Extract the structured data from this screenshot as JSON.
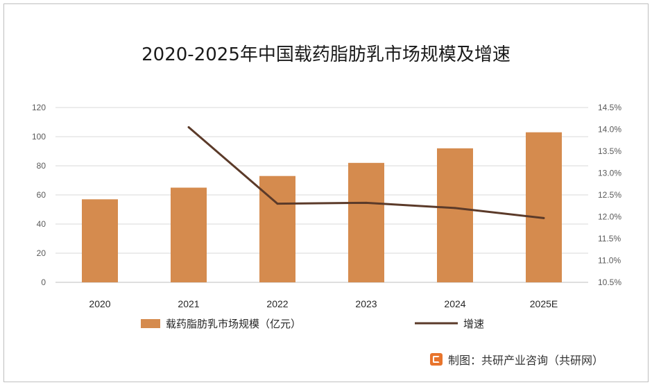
{
  "chart_data": {
    "type": "bar+line",
    "title": "2020-2025年中国载药脂肪乳市场规模及增速",
    "categories": [
      "2020",
      "2021",
      "2022",
      "2023",
      "2024",
      "2025E"
    ],
    "series": [
      {
        "name": "载药脂肪乳市场规模（亿元）",
        "type": "bar",
        "axis": "left",
        "values": [
          57,
          65,
          73,
          82,
          92,
          103
        ],
        "color": "#d58b4e"
      },
      {
        "name": "增速",
        "type": "line",
        "axis": "right",
        "values": [
          null,
          14.05,
          12.3,
          12.32,
          12.2,
          11.97
        ],
        "color": "#5b3a29"
      }
    ],
    "left_axis": {
      "min": 0,
      "max": 120,
      "ticks": [
        "0",
        "20",
        "40",
        "60",
        "80",
        "100",
        "120"
      ]
    },
    "right_axis": {
      "min": 10.5,
      "max": 14.5,
      "ticks": [
        "10.5%",
        "11.0%",
        "11.5%",
        "12.0%",
        "12.5%",
        "13.0%",
        "13.5%",
        "14.0%",
        "14.5%"
      ]
    },
    "legend_position": "bottom",
    "gridlines": true
  },
  "footer": {
    "credit": "制图：共研产业咨询（共研网）"
  }
}
